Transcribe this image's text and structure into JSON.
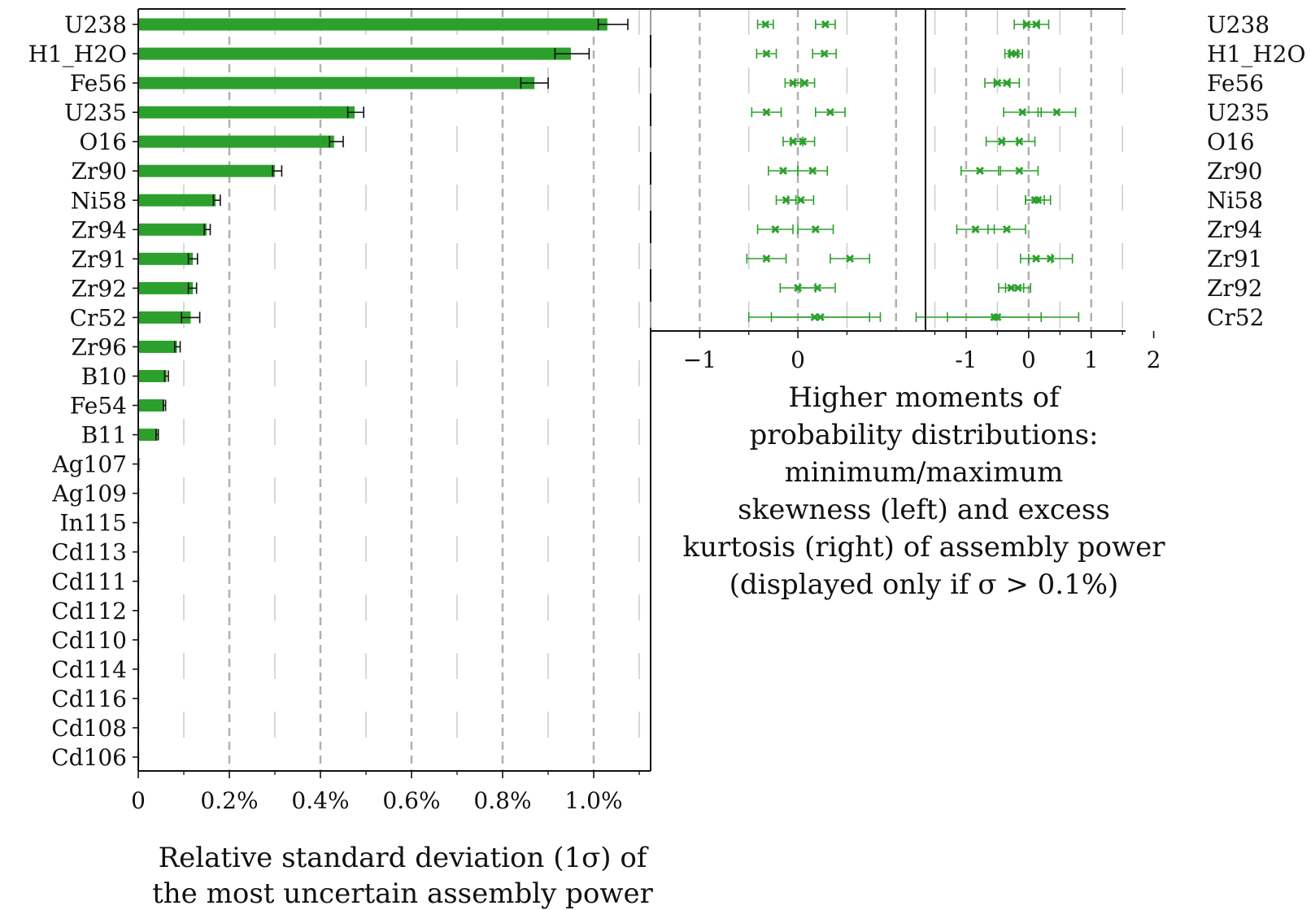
{
  "chart_data": [
    {
      "type": "bar",
      "orientation": "horizontal",
      "categories": [
        "U238",
        "H1_H2O",
        "Fe56",
        "U235",
        "O16",
        "Zr90",
        "Ni58",
        "Zr94",
        "Zr91",
        "Zr92",
        "Cr52",
        "Zr96",
        "B10",
        "Fe54",
        "B11",
        "Ag107",
        "Ag109",
        "In115",
        "Cd113",
        "Cd111",
        "Cd112",
        "Cd110",
        "Cd114",
        "Cd116",
        "Cd108",
        "Cd106"
      ],
      "values": [
        1.03,
        0.95,
        0.87,
        0.475,
        0.43,
        0.3,
        0.17,
        0.15,
        0.12,
        0.12,
        0.115,
        0.085,
        0.062,
        0.057,
        0.042,
        0.003,
        0.002,
        0.0015,
        0.001,
        0.001,
        0.001,
        0.001,
        0.001,
        0.001,
        0.001,
        0.001
      ],
      "errors": [
        [
          0.02,
          0.045
        ],
        [
          0.035,
          0.04
        ],
        [
          0.03,
          0.03
        ],
        [
          0.015,
          0.02
        ],
        [
          0.01,
          0.02
        ],
        [
          0.005,
          0.015
        ],
        [
          0.005,
          0.01
        ],
        [
          0.005,
          0.008
        ],
        [
          0.01,
          0.01
        ],
        [
          0.01,
          0.008
        ],
        [
          0.02,
          0.02
        ],
        [
          0.005,
          0.007
        ],
        [
          0.004,
          0.004
        ],
        [
          0.002,
          0.003
        ],
        [
          0.003,
          0.002
        ],
        [
          0,
          0
        ],
        [
          0,
          0
        ],
        [
          0,
          0
        ],
        [
          0,
          0
        ],
        [
          0,
          0
        ],
        [
          0,
          0
        ],
        [
          0,
          0
        ],
        [
          0,
          0
        ],
        [
          0,
          0
        ],
        [
          0,
          0
        ],
        [
          0,
          0
        ]
      ],
      "xlim": [
        0,
        1.125
      ],
      "xticks": [
        0,
        0.2,
        0.4,
        0.6,
        0.8,
        1.0
      ],
      "xtick_labels": [
        "0",
        "0.2%",
        "0.4%",
        "0.6%",
        "0.8%",
        "1.0%"
      ],
      "grid": "vertical dashed",
      "bar_color": "#2ca02c",
      "xlabel": [
        "Relative standard deviation (1σ) of",
        "the most uncertain assembly power"
      ]
    },
    {
      "type": "scatter",
      "title": [
        "Higher moments of",
        "probability distributions:",
        "minimum/maximum",
        "skewness (left) and excess",
        "kurtosis (right) of assembly power",
        "(displayed only if σ > 0.1%)"
      ],
      "categories": [
        "U238",
        "H1_H2O",
        "Fe56",
        "U235",
        "O16",
        "Zr90",
        "Ni58",
        "Zr94",
        "Zr91",
        "Zr92",
        "Cr52"
      ],
      "color": "#2ca02c",
      "skewness": {
        "xlim": [
          -1.5,
          1.3
        ],
        "xticks": [
          -1,
          0
        ],
        "xtick_labels": [
          "−1",
          "0"
        ],
        "points": [
          [
            [
              -0.33,
              0.08
            ],
            [
              0.28,
              0.1
            ]
          ],
          [
            [
              -0.32,
              0.1
            ],
            [
              0.27,
              0.12
            ]
          ],
          [
            [
              -0.05,
              0.08
            ],
            [
              0.07,
              0.1
            ]
          ],
          [
            [
              -0.32,
              0.15
            ],
            [
              0.33,
              0.15
            ]
          ],
          [
            [
              -0.05,
              0.1
            ],
            [
              0.05,
              0.12
            ]
          ],
          [
            [
              -0.15,
              0.15
            ],
            [
              0.15,
              0.15
            ]
          ],
          [
            [
              -0.12,
              0.1
            ],
            [
              0.03,
              0.13
            ]
          ],
          [
            [
              -0.23,
              0.18
            ],
            [
              0.18,
              0.18
            ]
          ],
          [
            [
              -0.32,
              0.2
            ],
            [
              0.53,
              0.2
            ]
          ],
          [
            [
              0.0,
              0.18
            ],
            [
              0.2,
              0.18
            ]
          ],
          [
            [
              0.17,
              0.67
            ],
            [
              0.23,
              0.5
            ]
          ]
        ]
      },
      "kurtosis": {
        "xlim": [
          -1.65,
          1.55
        ],
        "xticks": [
          -1,
          0,
          1,
          2
        ],
        "xtick_labels": [
          "-1",
          "0",
          "1",
          "2"
        ],
        "points": [
          [
            [
              -0.03,
              0.2
            ],
            [
              0.12,
              0.2
            ]
          ],
          [
            [
              -0.28,
              0.1
            ],
            [
              -0.2,
              0.1
            ]
          ],
          [
            [
              -0.5,
              0.2
            ],
            [
              -0.35,
              0.2
            ]
          ],
          [
            [
              -0.1,
              0.3
            ],
            [
              0.45,
              0.3
            ]
          ],
          [
            [
              -0.43,
              0.25
            ],
            [
              -0.15,
              0.25
            ]
          ],
          [
            [
              -0.78,
              0.3
            ],
            [
              -0.15,
              0.3
            ]
          ],
          [
            [
              0.1,
              0.15
            ],
            [
              0.15,
              0.2
            ]
          ],
          [
            [
              -0.85,
              0.3
            ],
            [
              -0.35,
              0.3
            ]
          ],
          [
            [
              0.12,
              0.25
            ],
            [
              0.35,
              0.35
            ]
          ],
          [
            [
              -0.28,
              0.2
            ],
            [
              -0.17,
              0.2
            ]
          ],
          [
            [
              -0.55,
              0.75
            ],
            [
              -0.5,
              1.3
            ]
          ]
        ]
      }
    }
  ]
}
